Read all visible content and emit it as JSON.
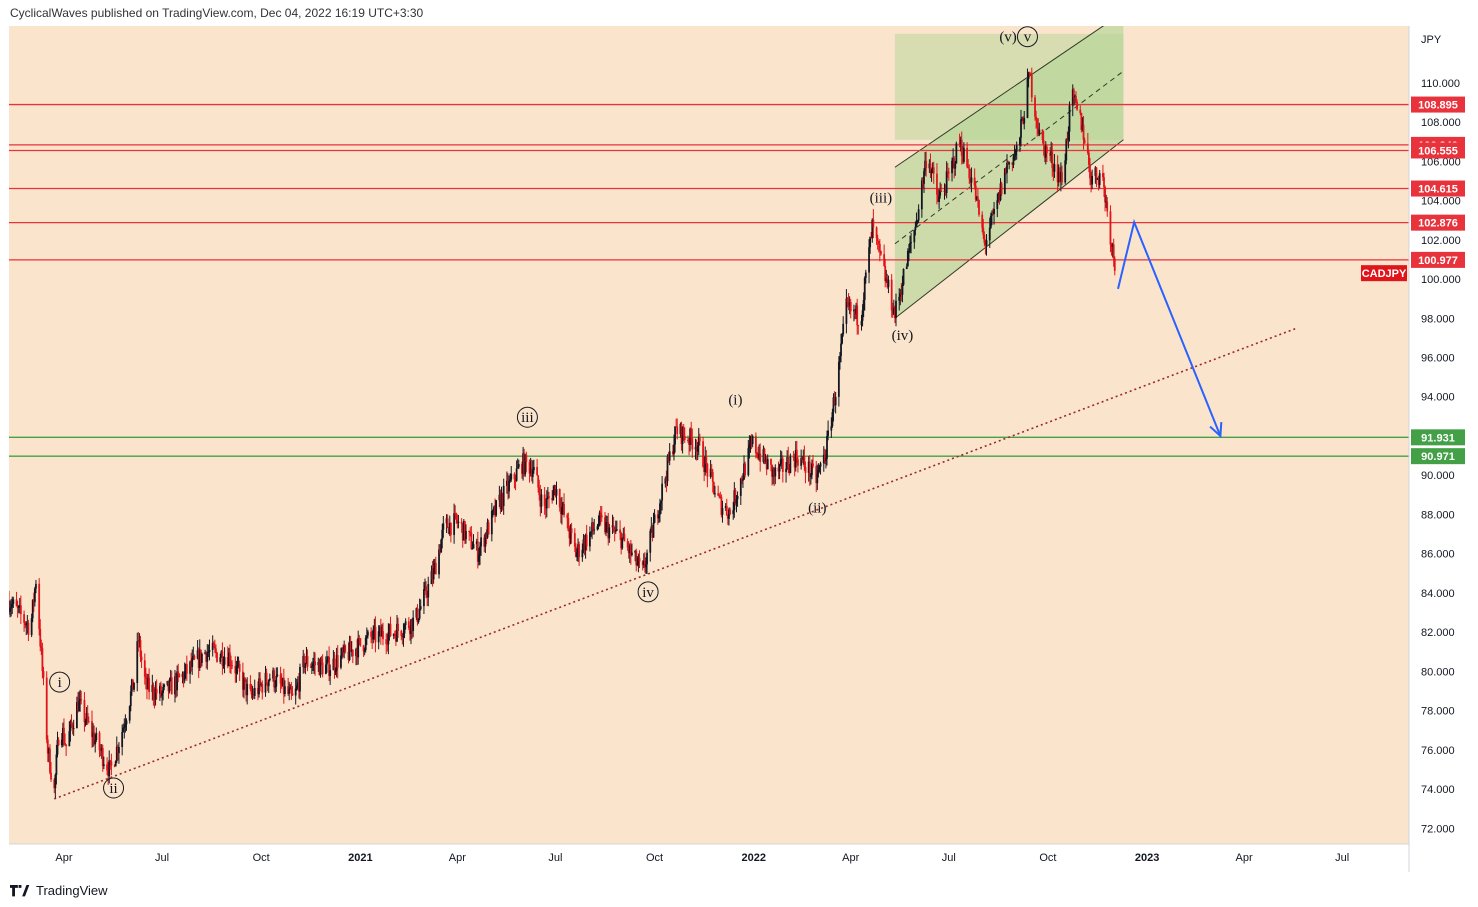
{
  "header": {
    "text": "CyclicalWaves published on TradingView.com, Dec 04, 2022 16:19 UTC+3:30"
  },
  "footer": {
    "brand": "TradingView"
  },
  "colors": {
    "background": "#fbe4cc",
    "up_candle": "#131722",
    "down_candle": "#e0141b",
    "resistance_line": "#e8323c",
    "support_line": "#43a047",
    "channel_fill": "#b9d59a",
    "projection": "#2962ff",
    "trendline": "#9c2a2a"
  },
  "chart_data": {
    "type": "candlestick",
    "symbol": "CADJPY",
    "currency": "JPY",
    "x_axis": {
      "range": [
        "2020-02-10",
        "2023-09-01"
      ],
      "ticks": [
        {
          "date": "2020-04-01",
          "label": "Apr",
          "bold": false
        },
        {
          "date": "2020-07-01",
          "label": "Jul",
          "bold": false
        },
        {
          "date": "2020-10-01",
          "label": "Oct",
          "bold": false
        },
        {
          "date": "2021-01-01",
          "label": "2021",
          "bold": true
        },
        {
          "date": "2021-04-01",
          "label": "Apr",
          "bold": false
        },
        {
          "date": "2021-07-01",
          "label": "Jul",
          "bold": false
        },
        {
          "date": "2021-10-01",
          "label": "Oct",
          "bold": false
        },
        {
          "date": "2022-01-01",
          "label": "2022",
          "bold": true
        },
        {
          "date": "2022-04-01",
          "label": "Apr",
          "bold": false
        },
        {
          "date": "2022-07-01",
          "label": "Jul",
          "bold": false
        },
        {
          "date": "2022-10-01",
          "label": "Oct",
          "bold": false
        },
        {
          "date": "2023-01-01",
          "label": "2023",
          "bold": true
        },
        {
          "date": "2023-04-01",
          "label": "Apr",
          "bold": false
        },
        {
          "date": "2023-07-01",
          "label": "Jul",
          "bold": false
        }
      ]
    },
    "y_axis": {
      "range": [
        71.2,
        112.9
      ],
      "ticks": [
        "72.000",
        "74.000",
        "76.000",
        "78.000",
        "80.000",
        "82.000",
        "84.000",
        "86.000",
        "88.000",
        "90.000",
        "92.000",
        "94.000",
        "96.000",
        "98.000",
        "100.000",
        "102.000",
        "104.000",
        "106.000",
        "108.000",
        "110.000"
      ]
    },
    "price_path": [
      {
        "date": "2020-02-10",
        "close": 83.6
      },
      {
        "date": "2020-03-01",
        "close": 82.2
      },
      {
        "date": "2020-03-06",
        "close": 84.7
      },
      {
        "date": "2020-03-12",
        "close": 80.0
      },
      {
        "date": "2020-03-17",
        "close": 76.0
      },
      {
        "date": "2020-03-23",
        "close": 73.9
      },
      {
        "date": "2020-03-28",
        "close": 77.5
      },
      {
        "date": "2020-04-03",
        "close": 76.2
      },
      {
        "date": "2020-04-14",
        "close": 78.4
      },
      {
        "date": "2020-04-30",
        "close": 76.5
      },
      {
        "date": "2020-05-14",
        "close": 74.9
      },
      {
        "date": "2020-05-25",
        "close": 77.0
      },
      {
        "date": "2020-06-05",
        "close": 79.5
      },
      {
        "date": "2020-06-09",
        "close": 81.6
      },
      {
        "date": "2020-06-16",
        "close": 79.2
      },
      {
        "date": "2020-07-01",
        "close": 78.8
      },
      {
        "date": "2020-07-21",
        "close": 79.8
      },
      {
        "date": "2020-08-10",
        "close": 81.0
      },
      {
        "date": "2020-09-01",
        "close": 80.8
      },
      {
        "date": "2020-09-21",
        "close": 78.7
      },
      {
        "date": "2020-10-10",
        "close": 79.8
      },
      {
        "date": "2020-10-31",
        "close": 78.5
      },
      {
        "date": "2020-11-10",
        "close": 80.5
      },
      {
        "date": "2020-12-01",
        "close": 80.2
      },
      {
        "date": "2020-12-20",
        "close": 80.9
      },
      {
        "date": "2021-01-10",
        "close": 81.7
      },
      {
        "date": "2021-02-01",
        "close": 82.0
      },
      {
        "date": "2021-02-21",
        "close": 82.6
      },
      {
        "date": "2021-03-10",
        "close": 85.0
      },
      {
        "date": "2021-03-20",
        "close": 87.4
      },
      {
        "date": "2021-04-01",
        "close": 87.6
      },
      {
        "date": "2021-04-20",
        "close": 86.1
      },
      {
        "date": "2021-05-10",
        "close": 88.6
      },
      {
        "date": "2021-05-31",
        "close": 90.6
      },
      {
        "date": "2021-06-10",
        "close": 90.4
      },
      {
        "date": "2021-06-20",
        "close": 88.3
      },
      {
        "date": "2021-07-01",
        "close": 89.4
      },
      {
        "date": "2021-07-20",
        "close": 86.0
      },
      {
        "date": "2021-08-10",
        "close": 87.6
      },
      {
        "date": "2021-08-31",
        "close": 86.8
      },
      {
        "date": "2021-09-20",
        "close": 85.0
      },
      {
        "date": "2021-10-01",
        "close": 87.6
      },
      {
        "date": "2021-10-21",
        "close": 92.3
      },
      {
        "date": "2021-11-10",
        "close": 91.6
      },
      {
        "date": "2021-11-30",
        "close": 88.6
      },
      {
        "date": "2021-12-10",
        "close": 88.1
      },
      {
        "date": "2021-12-31",
        "close": 91.6
      },
      {
        "date": "2022-01-20",
        "close": 90.0
      },
      {
        "date": "2022-02-10",
        "close": 91.0
      },
      {
        "date": "2022-02-28",
        "close": 89.8
      },
      {
        "date": "2022-03-09",
        "close": 91.2
      },
      {
        "date": "2022-03-20",
        "close": 95.0
      },
      {
        "date": "2022-03-28",
        "close": 98.5
      },
      {
        "date": "2022-04-10",
        "close": 98.0
      },
      {
        "date": "2022-04-21",
        "close": 102.6
      },
      {
        "date": "2022-05-01",
        "close": 100.5
      },
      {
        "date": "2022-05-12",
        "close": 98.2
      },
      {
        "date": "2022-05-22",
        "close": 100.6
      },
      {
        "date": "2022-06-01",
        "close": 103.0
      },
      {
        "date": "2022-06-11",
        "close": 106.5
      },
      {
        "date": "2022-06-21",
        "close": 104.0
      },
      {
        "date": "2022-07-01",
        "close": 105.2
      },
      {
        "date": "2022-07-11",
        "close": 107.0
      },
      {
        "date": "2022-07-24",
        "close": 104.8
      },
      {
        "date": "2022-08-03",
        "close": 101.8
      },
      {
        "date": "2022-08-13",
        "close": 103.4
      },
      {
        "date": "2022-08-24",
        "close": 105.8
      },
      {
        "date": "2022-09-03",
        "close": 106.6
      },
      {
        "date": "2022-09-14",
        "close": 110.4
      },
      {
        "date": "2022-09-24",
        "close": 107.0
      },
      {
        "date": "2022-10-04",
        "close": 106.1
      },
      {
        "date": "2022-10-14",
        "close": 105.0
      },
      {
        "date": "2022-10-23",
        "close": 109.3
      },
      {
        "date": "2022-11-02",
        "close": 107.8
      },
      {
        "date": "2022-11-10",
        "close": 105.2
      },
      {
        "date": "2022-11-20",
        "close": 105.4
      },
      {
        "date": "2022-11-30",
        "close": 101.5
      },
      {
        "date": "2022-12-04",
        "close": 100.2
      }
    ],
    "horizontal_levels": [
      {
        "value": 108.895,
        "label": "108.895",
        "kind": "resistance"
      },
      {
        "value": 106.84,
        "label": "106.840",
        "kind": "resistance"
      },
      {
        "value": 106.555,
        "label": "106.555",
        "kind": "resistance"
      },
      {
        "value": 104.615,
        "label": "104.615",
        "kind": "resistance"
      },
      {
        "value": 102.876,
        "label": "102.876",
        "kind": "resistance"
      },
      {
        "value": 100.977,
        "label": "100.977",
        "kind": "resistance"
      },
      {
        "value": 91.931,
        "label": "91.931",
        "kind": "support"
      },
      {
        "value": 90.971,
        "label": "90.971",
        "kind": "support"
      }
    ],
    "symbol_badge": {
      "label": "CADJPY",
      "value": 100.3
    },
    "channel": {
      "start": "2022-05-12",
      "end": "2022-12-10",
      "lower": [
        98.0,
        107.1
      ],
      "upper": [
        105.7,
        113.6
      ],
      "mid": [
        101.8,
        110.6
      ],
      "box_top": 112.5
    },
    "trendline": {
      "from": {
        "date": "2020-03-23",
        "value": 73.5
      },
      "to": {
        "date": "2023-05-20",
        "value": 97.5
      }
    },
    "projection": [
      {
        "date": "2022-12-05",
        "value": 99.5
      },
      {
        "date": "2022-12-20",
        "value": 102.9
      },
      {
        "date": "2023-03-10",
        "value": 92.0
      }
    ],
    "wave_labels": [
      {
        "text": "i",
        "circled": true,
        "date": "2020-03-28",
        "value": 79.2
      },
      {
        "text": "ii",
        "circled": true,
        "date": "2020-05-17",
        "value": 73.8
      },
      {
        "text": "iii",
        "circled": true,
        "date": "2021-06-05",
        "value": 92.7
      },
      {
        "text": "iv",
        "circled": true,
        "date": "2021-09-25",
        "value": 83.8
      },
      {
        "text": "v",
        "circled": true,
        "date": "2022-09-12",
        "value": 112.1
      },
      {
        "text": "(i)",
        "circled": false,
        "date": "2021-12-15",
        "value": 93.6
      },
      {
        "text": "(ii)",
        "circled": false,
        "date": "2022-03-01",
        "value": 88.1
      },
      {
        "text": "(iii)",
        "circled": false,
        "date": "2022-04-29",
        "value": 103.9
      },
      {
        "text": "(iv)",
        "circled": false,
        "date": "2022-05-19",
        "value": 96.9
      },
      {
        "text": "(v)",
        "circled": false,
        "date": "2022-08-25",
        "value": 112.1
      }
    ]
  }
}
